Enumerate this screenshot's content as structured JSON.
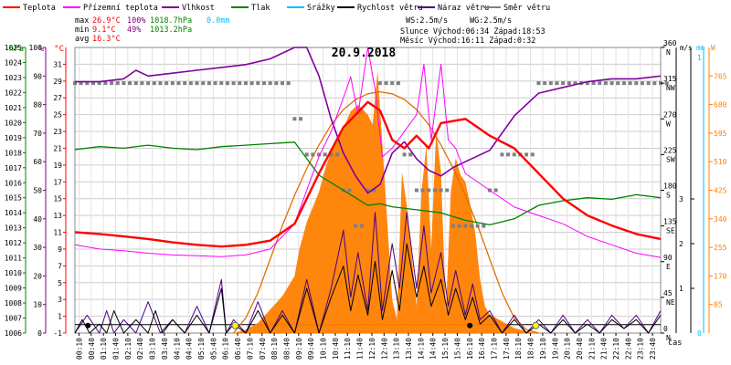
{
  "chart_data": {
    "type": "line",
    "title": "20.9.2018",
    "x_label": "čas",
    "x_ticks": [
      "00:10",
      "00:40",
      "01:10",
      "01:40",
      "02:10",
      "02:40",
      "03:10",
      "03:40",
      "04:10",
      "04:40",
      "05:10",
      "05:40",
      "06:10",
      "06:40",
      "07:10",
      "07:40",
      "08:10",
      "08:40",
      "09:10",
      "09:40",
      "10:10",
      "10:40",
      "11:10",
      "11:40",
      "12:10",
      "12:40",
      "13:10",
      "13:40",
      "14:10",
      "14:40",
      "15:10",
      "15:40",
      "16:10",
      "16:40",
      "17:10",
      "17:40",
      "18:10",
      "18:40",
      "19:10",
      "19:40",
      "20:10",
      "20:40",
      "21:10",
      "21:40",
      "22:10",
      "22:40",
      "23:10",
      "23:40"
    ],
    "axes": {
      "pressure": {
        "unit": "hPa",
        "range": [
          1006,
          1025
        ],
        "ticks": [
          "1006",
          "1007",
          "1008",
          "1009",
          "1010",
          "1011",
          "1012",
          "1013",
          "1014",
          "1015",
          "1016",
          "1017",
          "1018",
          "1019",
          "1020",
          "1021",
          "1022",
          "1023",
          "1024",
          "1025"
        ],
        "color": "#008000"
      },
      "humidity": {
        "unit": "%",
        "range": [
          0,
          100
        ],
        "ticks": [
          "0",
          "10",
          "20",
          "30",
          "40",
          "50",
          "60",
          "70",
          "80",
          "90",
          "100"
        ],
        "color": "#800080"
      },
      "temperature": {
        "unit": "°C",
        "range": [
          -1,
          33
        ],
        "ticks": [
          "-1",
          "1",
          "3",
          "5",
          "7",
          "9",
          "11",
          "13",
          "15",
          "17",
          "19",
          "21",
          "23",
          "25",
          "27",
          "29",
          "31"
        ],
        "color": "#ff0000"
      },
      "direction": {
        "unit": "°",
        "range": [
          0,
          360
        ],
        "ticks": [
          {
            "deg": 0,
            "text": "0",
            "sub": "N"
          },
          {
            "deg": 45,
            "text": "45",
            "sub": "NE"
          },
          {
            "deg": 90,
            "text": "90",
            "sub": "E"
          },
          {
            "deg": 135,
            "text": "135",
            "sub": "SE"
          },
          {
            "deg": 180,
            "text": "180",
            "sub": "S"
          },
          {
            "deg": 225,
            "text": "225",
            "sub": "SW"
          },
          {
            "deg": 270,
            "text": "270",
            "sub": "W"
          },
          {
            "deg": 315,
            "text": "315",
            "sub": "NW"
          },
          {
            "deg": 360,
            "text": "360",
            "sub": "N"
          }
        ],
        "color": "#000000"
      },
      "wind": {
        "unit": "m/s",
        "range": [
          0,
          3
        ],
        "ticks": [
          "1",
          "2",
          "3"
        ],
        "color": "#000000"
      },
      "rain": {
        "unit": "mm",
        "ticks": [
          "0",
          "1"
        ],
        "color": "#00bfff"
      },
      "solar": {
        "unit": "W",
        "range": [
          0,
          850
        ],
        "ticks": [
          "85",
          "170",
          "255",
          "340",
          "425",
          "510",
          "595",
          "680",
          "765"
        ],
        "color": "#ff8000"
      }
    },
    "legend": [
      {
        "name": "Teplota",
        "color": "#ff0000"
      },
      {
        "name": "Přízemní teplota",
        "color": "#ff00ff"
      },
      {
        "name": "Vlhkost",
        "color": "#800080"
      },
      {
        "name": "Tlak",
        "color": "#008000"
      },
      {
        "name": "Srážky",
        "color": "#00bfff"
      },
      {
        "name": "Rychlost větru",
        "color": "#000000"
      },
      {
        "name": "Náraz větru",
        "color": "#4b0082"
      },
      {
        "name": "Směr větru",
        "color": "#808080"
      }
    ],
    "stats": {
      "rows": [
        {
          "label": "max",
          "temp": "26.9°C",
          "hum": "100%",
          "press": "1018.7hPa",
          "rain": "0.0mm"
        },
        {
          "label": "min",
          "temp": "9.1°C",
          "hum": "49%",
          "press": "1013.2hPa",
          "rain": ""
        },
        {
          "label": "avg",
          "temp": "16.3°C",
          "hum": "",
          "press": "",
          "rain": ""
        }
      ],
      "ws": "WS:2.5m/s",
      "wg": "WG:2.5m/s",
      "sun": "Slunce Východ:06:34  Západ:18:53",
      "moon": "Měsíc  Východ:16:11  Západ:0:32"
    },
    "series": {
      "temperature": {
        "t": [
          0,
          1,
          2,
          3,
          4,
          5,
          6,
          7,
          8,
          9,
          10,
          11,
          12,
          12.5,
          13,
          13.5,
          14,
          14.5,
          15,
          16,
          17,
          18,
          19,
          20,
          21,
          22,
          23,
          24
        ],
        "y": [
          11,
          10.8,
          10.5,
          10.2,
          9.8,
          9.5,
          9.3,
          9.5,
          10,
          12,
          18,
          23.5,
          26.5,
          25.5,
          22,
          21,
          22.5,
          21,
          24,
          24.5,
          22.5,
          21,
          18,
          15,
          13,
          11.8,
          10.8,
          10.2
        ]
      },
      "ground_temperature": {
        "t": [
          0,
          1,
          2,
          3,
          4,
          5,
          6,
          7,
          8,
          9,
          9.5,
          10,
          10.5,
          11,
          11.3,
          11.6,
          12,
          12.3,
          12.6,
          13,
          13.5,
          14,
          14.3,
          14.6,
          15,
          15.3,
          15.6,
          16,
          17,
          18,
          19,
          20,
          21,
          22,
          23,
          24
        ],
        "y": [
          9.5,
          9,
          8.8,
          8.5,
          8.3,
          8.2,
          8.1,
          8.3,
          9,
          12,
          16,
          20,
          23,
          27,
          29.5,
          25,
          33,
          28,
          20,
          21,
          23,
          25,
          31,
          22,
          31,
          22,
          21,
          18,
          16,
          14,
          13,
          12,
          10.5,
          9.5,
          8.5,
          8
        ]
      },
      "humidity": {
        "t": [
          0,
          1,
          2,
          2.5,
          3,
          4,
          5,
          6,
          7,
          8,
          9,
          9.5,
          10,
          10.5,
          11,
          11.5,
          12,
          12.5,
          13,
          13.5,
          14,
          14.5,
          15,
          15.5,
          16,
          17,
          18,
          19,
          20,
          21,
          22,
          23,
          24
        ],
        "y": [
          88,
          88,
          89,
          92,
          90,
          91,
          92,
          93,
          94,
          96,
          100,
          100,
          90,
          75,
          63,
          55,
          49,
          52,
          63,
          67,
          61,
          57,
          55,
          58,
          60,
          64,
          76,
          84,
          86,
          88,
          89,
          89,
          90
        ]
      },
      "pressure": {
        "t": [
          0,
          1,
          2,
          3,
          4,
          5,
          6,
          7,
          8,
          9,
          10,
          11,
          11.5,
          12,
          12.5,
          13,
          14,
          15,
          16,
          17,
          18,
          19,
          20,
          21,
          22,
          23,
          24
        ],
        "y": [
          1018.2,
          1018.4,
          1018.3,
          1018.5,
          1018.3,
          1018.2,
          1018.4,
          1018.5,
          1018.6,
          1018.7,
          1016.5,
          1015.5,
          1015,
          1014.5,
          1014.6,
          1014.4,
          1014.2,
          1014,
          1013.5,
          1013.2,
          1013.6,
          1014.5,
          1014.8,
          1015,
          1014.9,
          1015.2,
          1015
        ]
      },
      "wind_speed": {
        "t": [
          0,
          0.3,
          0.6,
          1,
          1.3,
          1.6,
          2,
          2.5,
          3,
          3.3,
          3.6,
          4,
          4.5,
          5,
          5.5,
          6,
          6.2,
          6.5,
          7,
          7.5,
          8,
          8.5,
          9,
          9.5,
          10,
          10.5,
          11,
          11.3,
          11.6,
          12,
          12.3,
          12.6,
          13,
          13.3,
          13.6,
          14,
          14.3,
          14.6,
          15,
          15.3,
          15.6,
          16,
          16.3,
          16.6,
          17,
          17.5,
          18,
          18.5,
          19,
          19.5,
          20,
          20.5,
          21,
          21.5,
          22,
          22.5,
          23,
          23.5,
          24
        ],
        "y": [
          0,
          0.3,
          0,
          0.2,
          0,
          0.5,
          0,
          0.3,
          0,
          0.5,
          0,
          0.3,
          0,
          0.4,
          0,
          1,
          0,
          0.2,
          0,
          0.5,
          0,
          0.4,
          0,
          1,
          0,
          0.8,
          1.5,
          0.5,
          1.3,
          0.4,
          1.6,
          0.3,
          1.4,
          0.5,
          2,
          0.8,
          1.5,
          0.6,
          1.2,
          0.4,
          1,
          0.3,
          0.8,
          0.2,
          0.4,
          0,
          0.3,
          0,
          0.2,
          0,
          0.3,
          0,
          0.2,
          0,
          0.3,
          0.1,
          0.3,
          0,
          0.4
        ]
      },
      "wind_gust": {
        "t": [
          0,
          0.5,
          1,
          1.3,
          1.6,
          2,
          2.5,
          3,
          3.5,
          4,
          4.5,
          5,
          5.5,
          6,
          6.2,
          6.5,
          7,
          7.5,
          8,
          8.5,
          9,
          9.5,
          10,
          10.5,
          11,
          11.3,
          11.6,
          12,
          12.3,
          12.6,
          13,
          13.3,
          13.6,
          14,
          14.3,
          14.6,
          15,
          15.3,
          15.6,
          16,
          16.3,
          16.6,
          17,
          17.5,
          18,
          18.5,
          19,
          19.5,
          20,
          20.5,
          21,
          21.5,
          22,
          22.5,
          23,
          23.5,
          24
        ],
        "y": [
          0,
          0.4,
          0,
          0.5,
          0,
          0.3,
          0,
          0.7,
          0,
          0.3,
          0,
          0.6,
          0,
          1.2,
          0,
          0.3,
          0,
          0.7,
          0,
          0.5,
          0,
          1.2,
          0,
          1,
          2.3,
          0.8,
          1.8,
          0.5,
          2.7,
          0.5,
          2,
          1,
          2.7,
          1,
          2.4,
          0.9,
          1.8,
          0.6,
          1.4,
          0.4,
          1.1,
          0.3,
          0.5,
          0,
          0.4,
          0,
          0.3,
          0,
          0.4,
          0,
          0.3,
          0,
          0.4,
          0.1,
          0.4,
          0,
          0.5
        ]
      },
      "solar": {
        "t": [
          0,
          6.5,
          7,
          7.5,
          8,
          8.5,
          9,
          9.2,
          9.5,
          10,
          10.3,
          10.6,
          11,
          11.3,
          11.6,
          12,
          12.2,
          12.4,
          12.6,
          13,
          13.2,
          13.4,
          13.6,
          14,
          14.2,
          14.4,
          14.6,
          14.8,
          15,
          15.2,
          15.4,
          15.6,
          15.8,
          16,
          16.2,
          16.4,
          16.6,
          16.8,
          17,
          17.5,
          18,
          18.5,
          19,
          24
        ],
        "y": [
          0,
          0,
          10,
          30,
          70,
          110,
          170,
          250,
          330,
          420,
          500,
          560,
          610,
          660,
          680,
          650,
          620,
          780,
          560,
          100,
          40,
          480,
          380,
          80,
          420,
          560,
          250,
          600,
          480,
          60,
          420,
          520,
          470,
          450,
          380,
          300,
          160,
          80,
          55,
          35,
          15,
          5,
          0,
          0
        ]
      },
      "solar_theoretical": {
        "t": [
          6.5,
          7,
          7.5,
          8,
          8.5,
          9,
          9.5,
          10,
          10.5,
          11,
          11.5,
          12,
          12.5,
          13,
          13.5,
          14,
          14.5,
          15,
          15.5,
          16,
          16.5,
          17,
          17.5,
          18,
          18.5,
          19
        ],
        "y": [
          0,
          45,
          120,
          220,
          320,
          410,
          490,
          560,
          620,
          665,
          695,
          712,
          718,
          712,
          695,
          665,
          620,
          560,
          490,
          410,
          320,
          220,
          120,
          45,
          10,
          0
        ]
      },
      "wind_direction": {
        "t": [
          0,
          0.5,
          1,
          1.5,
          2,
          2.5,
          3,
          3.5,
          4,
          4.5,
          5,
          5.5,
          6,
          6.5,
          7,
          7.5,
          8,
          8.5,
          9,
          9.5,
          10,
          10.5,
          11,
          11.5,
          12,
          12.5,
          13,
          13.5,
          14,
          14.5,
          15,
          15.5,
          16,
          16.5,
          17,
          17.5,
          18,
          18.5,
          19,
          19.5,
          20,
          20.5,
          21,
          21.5,
          22,
          22.5,
          23,
          23.5,
          24
        ],
        "y": [
          315,
          315,
          315,
          315,
          315,
          315,
          315,
          315,
          315,
          315,
          315,
          315,
          315,
          315,
          315,
          315,
          315,
          315,
          270,
          225,
          225,
          225,
          180,
          135,
          180,
          315,
          315,
          225,
          180,
          180,
          180,
          135,
          135,
          135,
          180,
          225,
          225,
          225,
          315,
          315,
          315,
          315,
          315,
          315,
          315,
          315,
          315,
          315,
          315
        ]
      }
    },
    "markers": {
      "sunrise": "06:34",
      "sunset": "18:53",
      "moonrise": "16:11",
      "moonset": "0:32"
    }
  }
}
